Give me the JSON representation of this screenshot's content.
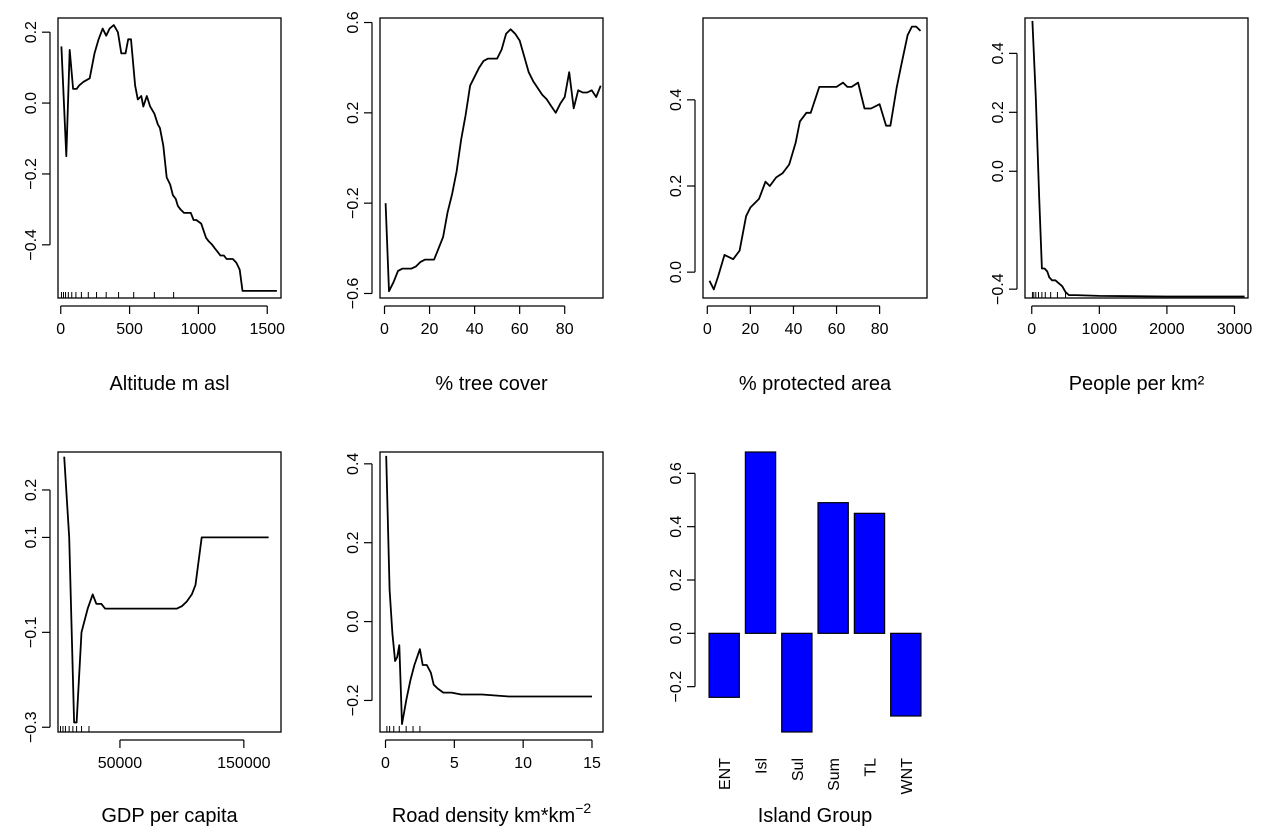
{
  "chart_data": [
    {
      "type": "line",
      "xlabel": "Altitude m asl",
      "xlim": [
        -20,
        1600
      ],
      "ylim": [
        -0.55,
        0.24
      ],
      "xticks": [
        0,
        500,
        1000,
        1500
      ],
      "xtick_labels": [
        "0",
        "500",
        "1000",
        "1500"
      ],
      "yticks": [
        -0.4,
        -0.2,
        0.0,
        0.2
      ],
      "ytick_labels": [
        "−0.4",
        "−0.2",
        "0.0",
        "0.2"
      ],
      "x": [
        5,
        40,
        65,
        90,
        115,
        135,
        165,
        210,
        245,
        275,
        305,
        330,
        355,
        385,
        415,
        440,
        470,
        490,
        510,
        540,
        560,
        585,
        600,
        625,
        650,
        680,
        705,
        720,
        745,
        770,
        795,
        815,
        835,
        850,
        870,
        895,
        920,
        945,
        965,
        985,
        1020,
        1055,
        1075,
        1100,
        1120,
        1140,
        1160,
        1185,
        1205,
        1225,
        1250,
        1275,
        1300,
        1320,
        1345,
        1570
      ],
      "y": [
        0.16,
        -0.15,
        0.15,
        0.04,
        0.04,
        0.05,
        0.06,
        0.07,
        0.14,
        0.18,
        0.21,
        0.19,
        0.21,
        0.22,
        0.2,
        0.14,
        0.14,
        0.18,
        0.18,
        0.05,
        0.01,
        0.02,
        -0.01,
        0.02,
        -0.01,
        -0.03,
        -0.06,
        -0.07,
        -0.12,
        -0.21,
        -0.23,
        -0.26,
        -0.27,
        -0.29,
        -0.3,
        -0.31,
        -0.31,
        -0.31,
        -0.33,
        -0.33,
        -0.34,
        -0.38,
        -0.39,
        -0.4,
        -0.41,
        -0.42,
        -0.43,
        -0.43,
        -0.44,
        -0.44,
        -0.44,
        -0.45,
        -0.47,
        -0.53,
        -0.53,
        -0.53
      ],
      "rug": [
        5,
        20,
        35,
        55,
        80,
        110,
        150,
        200,
        260,
        330,
        420,
        530,
        680,
        820
      ]
    },
    {
      "type": "line",
      "xlabel": "% tree cover",
      "xlim": [
        -2,
        97
      ],
      "ylim": [
        -0.62,
        0.62
      ],
      "xticks": [
        0,
        20,
        40,
        60,
        80
      ],
      "xtick_labels": [
        "0",
        "20",
        "40",
        "60",
        "80"
      ],
      "yticks": [
        -0.6,
        -0.2,
        0.2,
        0.6
      ],
      "ytick_labels": [
        "−0.6",
        "−0.2",
        "0.2",
        "0.6"
      ],
      "x": [
        0.5,
        2,
        4,
        6,
        8,
        10,
        12,
        14,
        16,
        18,
        20,
        22,
        24,
        26,
        28,
        30,
        32,
        34,
        36,
        38,
        40,
        42,
        44,
        46,
        48,
        50,
        52,
        54,
        56,
        58,
        60,
        62,
        64,
        66,
        68,
        70,
        72,
        74,
        76,
        78,
        80,
        82,
        84,
        86,
        88,
        90,
        92,
        94,
        96
      ],
      "y": [
        -0.2,
        -0.59,
        -0.55,
        -0.5,
        -0.49,
        -0.49,
        -0.49,
        -0.48,
        -0.46,
        -0.45,
        -0.45,
        -0.45,
        -0.4,
        -0.35,
        -0.24,
        -0.16,
        -0.06,
        0.08,
        0.19,
        0.32,
        0.36,
        0.4,
        0.43,
        0.44,
        0.44,
        0.44,
        0.48,
        0.55,
        0.57,
        0.55,
        0.52,
        0.45,
        0.38,
        0.34,
        0.31,
        0.28,
        0.26,
        0.23,
        0.2,
        0.24,
        0.27,
        0.38,
        0.22,
        0.3,
        0.29,
        0.29,
        0.3,
        0.27,
        0.32
      ]
    },
    {
      "type": "line",
      "xlabel": "% protected area",
      "xlim": [
        -2,
        102
      ],
      "ylim": [
        -0.06,
        0.59
      ],
      "xticks": [
        0,
        20,
        40,
        60,
        80
      ],
      "xtick_labels": [
        "0",
        "20",
        "40",
        "60",
        "80"
      ],
      "yticks": [
        0.0,
        0.2,
        0.4
      ],
      "ytick_labels": [
        "0.0",
        "0.2",
        "0.4"
      ],
      "x": [
        1,
        3,
        5,
        8,
        12,
        15,
        18,
        20,
        24,
        27,
        29,
        32,
        35,
        38,
        41,
        43,
        46,
        48,
        52,
        55,
        57,
        60,
        63,
        65,
        67,
        70,
        73,
        76,
        80,
        83,
        85,
        88,
        90,
        93,
        95,
        97,
        99
      ],
      "y": [
        -0.02,
        -0.04,
        -0.01,
        0.04,
        0.03,
        0.05,
        0.13,
        0.15,
        0.17,
        0.21,
        0.2,
        0.22,
        0.23,
        0.25,
        0.3,
        0.35,
        0.37,
        0.37,
        0.43,
        0.43,
        0.43,
        0.43,
        0.44,
        0.43,
        0.43,
        0.44,
        0.38,
        0.38,
        0.39,
        0.34,
        0.34,
        0.43,
        0.48,
        0.55,
        0.57,
        0.57,
        0.56
      ]
    },
    {
      "type": "line",
      "xlabel": "People per km²",
      "xlim": [
        -100,
        3200
      ],
      "ylim": [
        -0.43,
        0.52
      ],
      "xticks": [
        0,
        1000,
        2000,
        3000
      ],
      "xtick_labels": [
        "0",
        "1000",
        "2000",
        "3000"
      ],
      "yticks": [
        -0.4,
        0.0,
        0.2,
        0.4
      ],
      "ytick_labels": [
        "−0.4",
        "0.0",
        "0.2",
        "0.4"
      ],
      "x": [
        10,
        60,
        110,
        150,
        190,
        230,
        260,
        300,
        350,
        400,
        450,
        500,
        550,
        650,
        1000,
        1500,
        2000,
        3150
      ],
      "y": [
        0.51,
        0.25,
        -0.09,
        -0.33,
        -0.33,
        -0.34,
        -0.36,
        -0.37,
        -0.37,
        -0.38,
        -0.39,
        -0.41,
        -0.42,
        -0.42,
        -0.423,
        -0.424,
        -0.425,
        -0.425
      ],
      "rug": [
        10,
        30,
        60,
        100,
        150,
        200,
        280,
        380,
        500
      ]
    },
    {
      "type": "line",
      "xlabel": "GDP per capita",
      "xlim": [
        0,
        180000
      ],
      "ylim": [
        -0.31,
        0.28
      ],
      "xticks": [
        50000,
        150000
      ],
      "xtick_labels": [
        "50000",
        "150000"
      ],
      "yticks": [
        -0.3,
        -0.1,
        0.1,
        0.2
      ],
      "ytick_labels": [
        "−0.3",
        "−0.1",
        "0.1",
        "0.2"
      ],
      "x": [
        5000,
        9000,
        13000,
        15000,
        19000,
        24000,
        28000,
        31000,
        35000,
        38000,
        42000,
        46000,
        50000,
        60000,
        70000,
        80000,
        90000,
        96000,
        100000,
        104000,
        108000,
        111000,
        116000,
        130000,
        150000,
        170000
      ],
      "y": [
        0.27,
        0.1,
        -0.29,
        -0.29,
        -0.1,
        -0.05,
        -0.02,
        -0.04,
        -0.04,
        -0.05,
        -0.05,
        -0.05,
        -0.05,
        -0.05,
        -0.05,
        -0.05,
        -0.05,
        -0.05,
        -0.045,
        -0.035,
        -0.02,
        0.0,
        0.1,
        0.1,
        0.1,
        0.1
      ],
      "rug": [
        2000,
        4000,
        6000,
        9000,
        12000,
        15000,
        19000,
        25000
      ]
    },
    {
      "type": "line",
      "xlabel": "Road density km*km",
      "xlabel_superscript": "−2",
      "xlim": [
        -0.4,
        15.8
      ],
      "ylim": [
        -0.28,
        0.43
      ],
      "xticks": [
        0,
        5,
        10,
        15
      ],
      "xtick_labels": [
        "0",
        "5",
        "10",
        "15"
      ],
      "yticks": [
        -0.2,
        0.0,
        0.2,
        0.4
      ],
      "ytick_labels": [
        "−0.2",
        "0.0",
        "0.2",
        "0.4"
      ],
      "x": [
        0.05,
        0.3,
        0.5,
        0.7,
        0.85,
        1.0,
        1.2,
        1.5,
        1.8,
        2.1,
        2.5,
        2.7,
        3.0,
        3.3,
        3.5,
        3.8,
        4.2,
        4.8,
        5.5,
        7.0,
        9.0,
        12.0,
        15.0
      ],
      "y": [
        0.42,
        0.08,
        -0.03,
        -0.1,
        -0.09,
        -0.06,
        -0.26,
        -0.2,
        -0.15,
        -0.11,
        -0.07,
        -0.11,
        -0.11,
        -0.13,
        -0.16,
        -0.17,
        -0.18,
        -0.18,
        -0.185,
        -0.185,
        -0.19,
        -0.19,
        -0.19
      ],
      "rug": [
        0.1,
        0.3,
        0.6,
        1.0,
        1.5,
        2.0,
        2.5
      ]
    },
    {
      "type": "bar",
      "xlabel": "Island Group",
      "categories": [
        "ENT",
        "Isl",
        "Sul",
        "Sum",
        "TL",
        "WNT"
      ],
      "values": [
        -0.24,
        0.68,
        -0.37,
        0.49,
        0.45,
        -0.31
      ],
      "ylim": [
        -0.37,
        0.68
      ],
      "yticks": [
        -0.2,
        0.0,
        0.2,
        0.4,
        0.6
      ],
      "ytick_labels": [
        "−0.2",
        "0.0",
        "0.2",
        "0.4",
        "0.6"
      ],
      "bar_color": "#0000ff"
    }
  ]
}
